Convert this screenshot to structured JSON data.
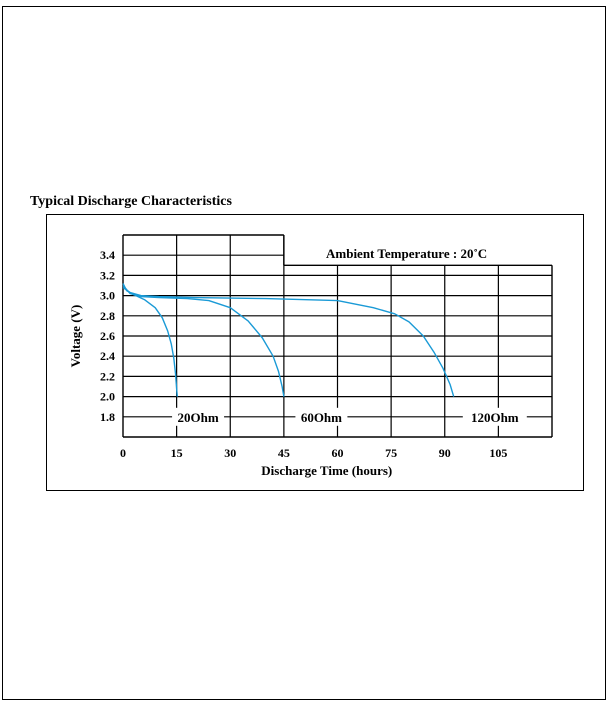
{
  "figure": {
    "title": "Typical Discharge Characteristics"
  },
  "chart_data": {
    "type": "line",
    "title": "Typical Discharge Characteristics",
    "annotation": "Ambient Temperature : 20˚C",
    "xlabel": "Discharge Time (hours)",
    "ylabel": "Voltage (V)",
    "xlim": [
      0,
      120
    ],
    "ylim": [
      1.6,
      3.6
    ],
    "x_ticks": [
      "0",
      "15",
      "30",
      "45",
      "60",
      "75",
      "90",
      "105"
    ],
    "y_ticks": [
      "1.8",
      "2.0",
      "2.2",
      "2.4",
      "2.6",
      "2.8",
      "3.0",
      "3.2",
      "3.4"
    ],
    "grid": true,
    "line_color": "#1a9ad6",
    "series": [
      {
        "name": "20Ohm",
        "x": [
          0,
          1,
          3,
          6,
          9,
          11,
          12.5,
          13.5,
          14.2,
          14.7,
          15.0,
          15.2
        ],
        "y": [
          3.12,
          3.05,
          3.01,
          2.96,
          2.88,
          2.78,
          2.65,
          2.52,
          2.38,
          2.22,
          2.08,
          2.0
        ]
      },
      {
        "name": "60Ohm",
        "x": [
          0,
          2,
          5,
          10,
          18,
          24,
          30,
          35,
          39,
          42,
          43.5,
          44.5,
          45
        ],
        "y": [
          3.1,
          3.02,
          2.99,
          2.98,
          2.97,
          2.95,
          2.88,
          2.75,
          2.58,
          2.4,
          2.25,
          2.1,
          2.0
        ]
      },
      {
        "name": "120Ohm",
        "x": [
          0,
          2,
          5,
          10,
          20,
          40,
          60,
          70,
          76,
          80,
          84,
          87,
          89.5,
          91.5,
          92.5
        ],
        "y": [
          3.08,
          3.03,
          3.0,
          2.99,
          2.98,
          2.97,
          2.95,
          2.88,
          2.82,
          2.74,
          2.6,
          2.44,
          2.28,
          2.12,
          2.0
        ]
      }
    ]
  }
}
